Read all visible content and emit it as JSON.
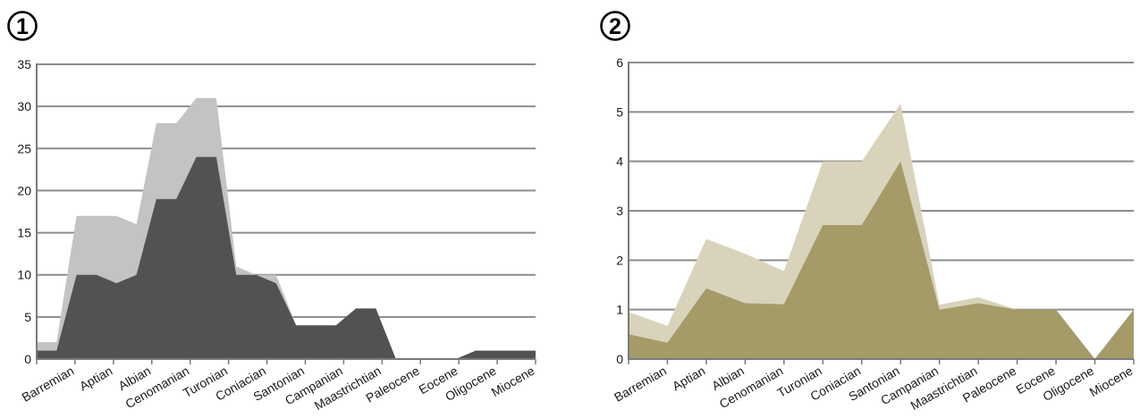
{
  "panels": [
    {
      "label": "1"
    },
    {
      "label": "2"
    }
  ],
  "chart_data": [
    {
      "type": "area",
      "panel_label": "1",
      "categories": [
        "Barremian",
        "Aptian",
        "Albian",
        "Cenomanian",
        "Turonian",
        "Coniacian",
        "Santonian",
        "Campanian",
        "Maastrichtian",
        "Paleocene",
        "Eocene",
        "Oligocene",
        "Miocene"
      ],
      "series": [
        {
          "values": [
            2,
            17,
            17,
            16,
            28,
            28,
            31,
            11,
            10,
            4,
            6,
            0,
            1
          ],
          "color": "#c3c2c4"
        },
        {
          "values": [
            1,
            10,
            9,
            10,
            19,
            19,
            24,
            10,
            9,
            4,
            6,
            0,
            1
          ],
          "color": "#515352"
        }
      ],
      "point_x": [
        0,
        0.5,
        1,
        1.5,
        2,
        2.5,
        3,
        3.5,
        4,
        4.5,
        5,
        5.5,
        6,
        6.5,
        7,
        7.5,
        8,
        8.5,
        9,
        9.5,
        10,
        10.5,
        11,
        11.5,
        12,
        12.5
      ],
      "series_points": [
        [
          2,
          2,
          17,
          17,
          17,
          16,
          28,
          28,
          31,
          31,
          11,
          10,
          10,
          4,
          4,
          4,
          6,
          6,
          0,
          0,
          0,
          0,
          1,
          1,
          1,
          1
        ],
        [
          1,
          1,
          10,
          10,
          9,
          10,
          19,
          19,
          24,
          24,
          10,
          10,
          9,
          4,
          4,
          4,
          6,
          6,
          0,
          0,
          0,
          0,
          1,
          1,
          1,
          1
        ]
      ],
      "ylim": [
        0,
        35
      ],
      "yticks": [
        0,
        5,
        10,
        15,
        20,
        25,
        30,
        35
      ],
      "grid": true
    },
    {
      "type": "area",
      "panel_label": "2",
      "categories": [
        "Barremian",
        "Aptian",
        "Albian",
        "Cenomanian",
        "Turonian",
        "Coniacian",
        "Santonian",
        "Campanian",
        "Maastrichtian",
        "Paleocene",
        "Eocene",
        "Oligocene",
        "Miocene"
      ],
      "series": [
        {
          "values": [
            0.67,
            2.43,
            2.13,
            1.78,
            4.0,
            4.0,
            5.17,
            1.1,
            1.25,
            1.0,
            1.0,
            0.0,
            1.0
          ],
          "color": "#d9d3bc"
        },
        {
          "values": [
            0.33,
            1.43,
            1.13,
            1.11,
            2.71,
            2.71,
            4.0,
            1.0,
            1.13,
            1.0,
            1.0,
            0.0,
            1.0
          ],
          "color": "#a59b69"
        }
      ],
      "point_x": [
        0,
        1,
        2,
        3,
        4,
        5,
        6,
        7,
        8,
        9,
        10,
        11,
        12,
        13
      ],
      "series_points": [
        [
          0.95,
          0.67,
          2.43,
          2.13,
          1.78,
          4.0,
          4.0,
          5.17,
          1.1,
          1.25,
          1.0,
          1.0,
          0.0,
          1.0
        ],
        [
          0.5,
          0.33,
          1.43,
          1.13,
          1.11,
          2.71,
          2.71,
          4.0,
          1.0,
          1.13,
          1.0,
          1.0,
          0.0,
          1.0
        ]
      ],
      "ylim": [
        0,
        6
      ],
      "yticks": [
        0,
        1,
        2,
        3,
        4,
        5,
        6
      ],
      "grid": true
    }
  ]
}
